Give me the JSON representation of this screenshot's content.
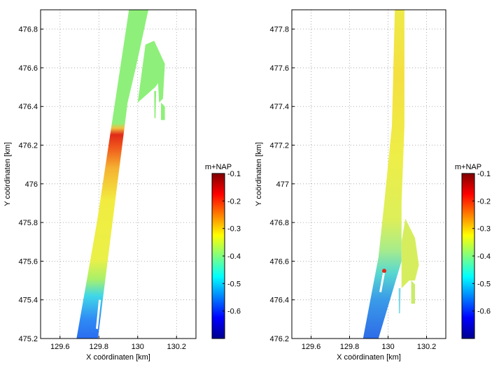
{
  "chart_data": [
    {
      "type": "heatmap",
      "title": "",
      "xlabel": "X coördinaten [km]",
      "ylabel": "Y coördinaten [km]",
      "xlim": [
        129.5,
        130.3
      ],
      "ylim": [
        475.2,
        476.9
      ],
      "x_ticks": [
        "129.6",
        "129.8",
        "130",
        "130.2"
      ],
      "y_ticks": [
        "475.2",
        "475.4",
        "475.6",
        "475.8",
        "476",
        "476.2",
        "476.4",
        "476.6",
        "476.8"
      ],
      "grid": true,
      "colorbar": {
        "title": "m+NAP",
        "range": [
          -0.7,
          -0.1
        ],
        "ticks": [
          "-0.1",
          "-0.2",
          "-0.3",
          "-0.4",
          "-0.5",
          "-0.6"
        ]
      },
      "regions": [
        {
          "from_y": 475.2,
          "to_y": 475.42,
          "value": -0.57
        },
        {
          "from_y": 475.42,
          "to_y": 475.5,
          "value": -0.45
        },
        {
          "from_y": 475.5,
          "to_y": 475.9,
          "value": -0.36
        },
        {
          "from_y": 475.9,
          "to_y": 476.08,
          "value": -0.28
        },
        {
          "from_y": 476.08,
          "to_y": 476.2,
          "value": -0.18
        },
        {
          "from_y": 476.2,
          "to_y": 476.9,
          "value": -0.42
        }
      ]
    },
    {
      "type": "heatmap",
      "title": "",
      "xlabel": "X coördinaten [km]",
      "ylabel": "Y coördinaten [km]",
      "xlim": [
        129.5,
        130.3
      ],
      "ylim": [
        476.2,
        477.9
      ],
      "x_ticks": [
        "129.6",
        "129.8",
        "130",
        "130.2"
      ],
      "y_ticks": [
        "476.2",
        "476.4",
        "476.6",
        "476.8",
        "477",
        "477.2",
        "477.4",
        "477.6",
        "477.8"
      ],
      "grid": true,
      "colorbar": {
        "title": "m+NAP",
        "range": [
          -0.7,
          -0.1
        ],
        "ticks": [
          "-0.1",
          "-0.2",
          "-0.3",
          "-0.4",
          "-0.5",
          "-0.6"
        ]
      },
      "regions": [
        {
          "from_y": 476.2,
          "to_y": 476.54,
          "value": -0.52
        },
        {
          "from_y": 476.54,
          "to_y": 476.8,
          "value": -0.4
        },
        {
          "from_y": 476.8,
          "to_y": 477.9,
          "value": -0.35
        }
      ]
    }
  ]
}
